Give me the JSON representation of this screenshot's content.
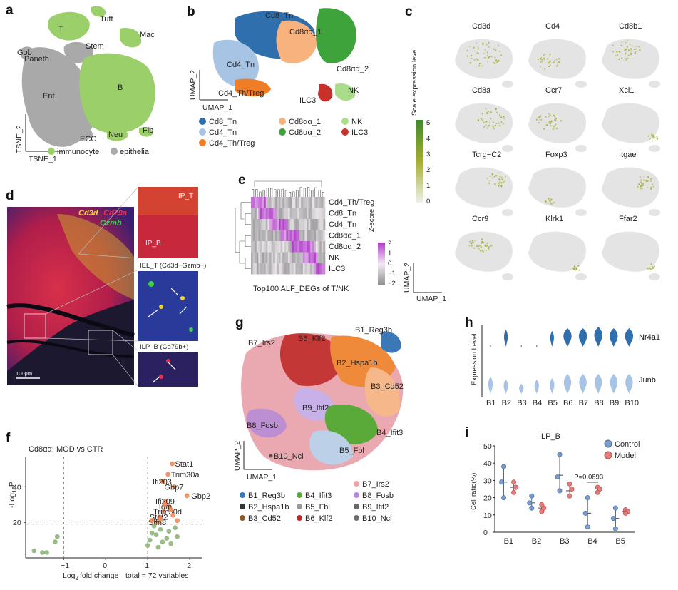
{
  "panels": {
    "a": "a",
    "b": "b",
    "c": "c",
    "d": "d",
    "e": "e",
    "f": "f",
    "g": "g",
    "h": "h",
    "i": "i"
  },
  "colors": {
    "immunocyte": "#9bcf6a",
    "epithelia": "#a9a9a9",
    "cd8_tn": "#2f6fad",
    "cd4_tn": "#a7c4e4",
    "cd4_th": "#ee7d26",
    "cd8aa1": "#f8b27d",
    "cd8aa2": "#3ea33a",
    "nk": "#a9dd8a",
    "ilc3": "#c8302a",
    "control": "#7a9ccc",
    "model": "#e57d7d",
    "expr_high": "#a6ad2f",
    "expr_low": "#e4e4e4"
  },
  "panel_a": {
    "clusters": [
      "Tuft",
      "T",
      "Mac",
      "Paneth",
      "Gob",
      "Stem",
      "Ent",
      "B",
      "ECC",
      "Flb",
      "Neu"
    ],
    "xlabel": "TSNE_1",
    "ylabel": "TSNE_2",
    "legend": [
      "immunocyte",
      "epithelia"
    ]
  },
  "panel_b": {
    "cluster_labels": [
      "Cd8_Tn",
      "Cd8αα_1",
      "Cd4_Tn",
      "Cd8αα_2",
      "Cd4_Th/Treg",
      "NK",
      "ILC3"
    ],
    "xlabel": "UMAP_1",
    "ylabel": "UMAP_2",
    "legend": [
      {
        "label": "Cd8_Tn",
        "color": "#2f6fad"
      },
      {
        "label": "Cd8αα_1",
        "color": "#f8b27d"
      },
      {
        "label": "NK",
        "color": "#a9dd8a"
      },
      {
        "label": "Cd4_Tn",
        "color": "#a7c4e4"
      },
      {
        "label": "Cd8αα_2",
        "color": "#3ea33a"
      },
      {
        "label": "ILC3",
        "color": "#c8302a"
      },
      {
        "label": "Cd4_Th/Treg",
        "color": "#ee7d26"
      }
    ]
  },
  "panel_c": {
    "genes": [
      "Cd3d",
      "Cd4",
      "Cd8b1",
      "Cd8a",
      "Ccr7",
      "Xcl1",
      "Tcrg−C2",
      "Foxp3",
      "Itgae",
      "Ccr9",
      "Klrk1",
      "Ffar2"
    ],
    "colorbar_title": "Scale expression level",
    "colorbar_ticks": [
      "5",
      "4",
      "3",
      "2",
      "1",
      "0"
    ],
    "xlabel": "UMAP_1",
    "ylabel": "UMAP_2"
  },
  "panel_d": {
    "stain_cd3d": "Cd3d",
    "stain_cd79a": "Cd79a",
    "stain_gzmb": "Gzmb",
    "ip_t": "IP_T",
    "ip_b": "IP_B",
    "iel_t": "IEL_T (Cd3d+Gzmb+)",
    "ilp_b": "ILP_B (Cd79b+)",
    "scale": "100μm"
  },
  "panel_e": {
    "rows": [
      "Cd4_Th/Treg",
      "Cd8_Tn",
      "Cd4_Tn",
      "Cd8αα_1",
      "Cd8αα_2",
      "NK",
      "ILC3"
    ],
    "xlabel": "Top100 ALF_DEGs of T/NK",
    "legend_title": "Z-score",
    "legend_ticks": [
      "2",
      "1",
      "0",
      "−1",
      "−2"
    ]
  },
  "panel_f": {
    "title": "Cd8αα: MOD vs CTR",
    "xlabel_prefix": "Log",
    "xlabel_sub": "2",
    "xlabel_suffix": "fold change",
    "ylabel_prefix": "-Log",
    "ylabel_sub": "10",
    "ylabel_suffix": "P",
    "total": "total = 72 variables",
    "x_ticks": [
      "−1",
      "0",
      "1",
      "2"
    ],
    "y_ticks": [
      "40",
      "20"
    ],
    "genes": [
      "Stat1",
      "Trim30a",
      "Ifi203",
      "Gbp7",
      "Gbp2",
      "Ifi209",
      "Igtp",
      "Trim30d",
      "Stat2",
      "Slfn8"
    ]
  },
  "panel_g": {
    "labels": [
      "B1_Reg3b",
      "B7_Irs2",
      "B6_Klf2",
      "B2_Hspa1b",
      "B3_Cd52",
      "B9_Ifit2",
      "B8_Fosb",
      "B4_Ifit3",
      "B5_Fbl",
      "B10_Ncl"
    ],
    "xlabel": "UMAP_1",
    "ylabel": "UMAP_2",
    "legend": [
      {
        "label": "B7_Irs2",
        "color": "#f4a1a8"
      },
      {
        "label": "B1_Reg3b",
        "color": "#3a78b8"
      },
      {
        "label": "B4_Ifit3",
        "color": "#5aaa3a"
      },
      {
        "label": "B8_Fosb",
        "color": "#b48ad8"
      },
      {
        "label": "B2_Hspa1b",
        "color": "#333333"
      },
      {
        "label": "B5_Fbl",
        "color": "#9a9a9a"
      },
      {
        "label": "B9_Ifit2",
        "color": "#6a6a6a"
      },
      {
        "label": "B3_Cd52",
        "color": "#8a5a2a"
      },
      {
        "label": "B6_Klf2",
        "color": "#c02a2a"
      },
      {
        "label": "B10_Ncl",
        "color": "#707070"
      }
    ]
  },
  "panel_h": {
    "ylabel": "Expression Level",
    "genes": [
      "Nr4a1",
      "Junb"
    ],
    "groups": [
      "B1",
      "B2",
      "B3",
      "B4",
      "B5",
      "B6",
      "B7",
      "B8",
      "B9",
      "B10"
    ]
  },
  "panel_i": {
    "title": "ILP_B",
    "ylabel": "Cell ratio(%)",
    "legend": [
      "Control",
      "Model"
    ],
    "pvalue": "P=0.0893",
    "y_ticks": [
      "50",
      "40",
      "30",
      "20",
      "10",
      "0"
    ]
  },
  "chart_data": [
    {
      "type": "scatter",
      "panel": "f",
      "title": "Cd8αα: MOD vs CTR",
      "xlabel": "Log2fold change",
      "ylabel": "-Log10P",
      "xlim": [
        -1.9,
        2.3
      ],
      "ylim": [
        0,
        57
      ],
      "thresholds": {
        "x": [
          -1,
          1
        ],
        "y": 19
      },
      "points": [
        {
          "label": "Stat1",
          "x": 1.58,
          "y": 53,
          "sig": true
        },
        {
          "label": "Trim30a",
          "x": 1.48,
          "y": 47,
          "sig": true
        },
        {
          "label": "Ifi203",
          "x": 1.35,
          "y": 43,
          "sig": true
        },
        {
          "label": "Gbp7",
          "x": 1.63,
          "y": 40,
          "sig": true
        },
        {
          "label": "Gbp2",
          "x": 1.93,
          "y": 35,
          "sig": true
        },
        {
          "label": "Ifi209",
          "x": 1.42,
          "y": 32,
          "sig": true
        },
        {
          "label": "Igtp",
          "x": 1.5,
          "y": 29,
          "sig": true
        },
        {
          "label": "Trim30d",
          "x": 1.37,
          "y": 26,
          "sig": true
        },
        {
          "label": "Stat2",
          "x": 1.28,
          "y": 23,
          "sig": true
        },
        {
          "label": "Slfn8",
          "x": 1.25,
          "y": 20,
          "sig": true
        },
        {
          "x": 1.4,
          "y": 30,
          "sig": true
        },
        {
          "x": 1.55,
          "y": 27,
          "sig": true
        },
        {
          "x": 1.3,
          "y": 22,
          "sig": true
        },
        {
          "x": 1.6,
          "y": 24,
          "sig": true
        },
        {
          "x": 1.7,
          "y": 21,
          "sig": true
        },
        {
          "x": 1.1,
          "y": 21,
          "sig": true
        },
        {
          "x": 1.15,
          "y": 18,
          "sig": false
        },
        {
          "x": 1.3,
          "y": 16,
          "sig": false
        },
        {
          "x": 1.5,
          "y": 15,
          "sig": false
        },
        {
          "x": 1.2,
          "y": 13,
          "sig": false
        },
        {
          "x": 1.65,
          "y": 17,
          "sig": false
        },
        {
          "x": 1.05,
          "y": 10,
          "sig": false
        },
        {
          "x": 1.35,
          "y": 9,
          "sig": false
        },
        {
          "x": 1.7,
          "y": 12,
          "sig": false
        },
        {
          "x": 1.1,
          "y": 14,
          "sig": false
        },
        {
          "x": 1.45,
          "y": 11,
          "sig": false
        },
        {
          "x": 1.25,
          "y": 6,
          "sig": false
        },
        {
          "x": 1.0,
          "y": 7,
          "sig": false
        },
        {
          "x": 1.55,
          "y": 8,
          "sig": false
        },
        {
          "x": -1.15,
          "y": 12,
          "sig": false
        },
        {
          "x": -1.2,
          "y": 9,
          "sig": false
        },
        {
          "x": -1.7,
          "y": 4,
          "sig": false
        },
        {
          "x": -1.5,
          "y": 3,
          "sig": false
        },
        {
          "x": -1.4,
          "y": 3,
          "sig": false
        }
      ]
    },
    {
      "type": "scatter",
      "panel": "i",
      "title": "ILP_B",
      "ylabel": "Cell ratio(%)",
      "ylim": [
        0,
        50
      ],
      "categories": [
        "B1",
        "B2",
        "B3",
        "B4",
        "B5"
      ],
      "series": [
        {
          "name": "Control",
          "values": [
            [
              38,
              29,
              20
            ],
            [
              21,
              17,
              14
            ],
            [
              45,
              32,
              24
            ],
            [
              20,
              11,
              3
            ],
            [
              14,
              8,
              2
            ]
          ],
          "mean": [
            29,
            17,
            33,
            11,
            8
          ]
        },
        {
          "name": "Model",
          "values": [
            [
              29,
              26,
              23
            ],
            [
              16,
              14,
              12
            ],
            [
              28,
              25,
              21
            ],
            [
              26,
              25,
              23
            ],
            [
              13,
              12,
              11
            ]
          ],
          "mean": [
            26,
            14,
            24,
            25,
            12
          ]
        }
      ],
      "annotation": {
        "between": "B4",
        "text": "P=0.0893"
      }
    }
  ]
}
